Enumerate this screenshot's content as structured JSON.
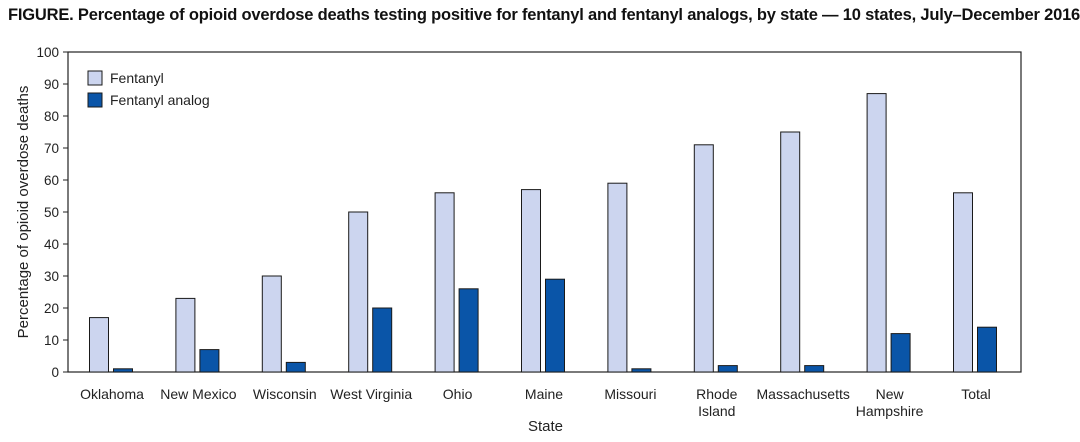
{
  "chart_data": {
    "type": "bar",
    "title_prefix": "FIGURE.",
    "title": "Percentage of opioid overdose deaths testing positive for fentanyl and fentanyl analogs, by state — 10 states, July–December 2016",
    "xlabel": "State",
    "ylabel": "Percentage of opioid overdose deaths",
    "ylim": [
      0,
      100
    ],
    "yticks": [
      0,
      10,
      20,
      30,
      40,
      50,
      60,
      70,
      80,
      90,
      100
    ],
    "grid": false,
    "legend_position": "top-left",
    "categories": [
      [
        "Oklahoma"
      ],
      [
        "New Mexico"
      ],
      [
        "Wisconsin"
      ],
      [
        "West Virginia"
      ],
      [
        "Ohio"
      ],
      [
        "Maine"
      ],
      [
        "Missouri"
      ],
      [
        "Rhode",
        "Island"
      ],
      [
        "Massachusetts"
      ],
      [
        "New",
        "Hampshire"
      ],
      [
        "Total"
      ]
    ],
    "series": [
      {
        "name": "Fentanyl",
        "color": "#ccd5ef",
        "values": [
          17,
          23,
          30,
          50,
          56,
          57,
          59,
          71,
          75,
          87,
          56
        ]
      },
      {
        "name": "Fentanyl analog",
        "color": "#0a55a8",
        "values": [
          1,
          7,
          3,
          20,
          26,
          29,
          1,
          2,
          2,
          12,
          14
        ]
      }
    ]
  }
}
